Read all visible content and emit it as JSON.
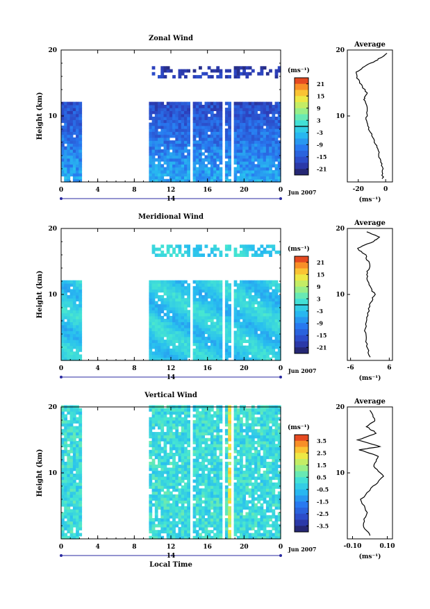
{
  "chart_data": [
    {
      "type": "heatmap",
      "title": "Zonal Wind",
      "ylabel": "Height (km)",
      "ylim": [
        0,
        20
      ],
      "xlim": [
        0,
        24
      ],
      "x_ticks": [
        "0",
        "4",
        "8",
        "12",
        "16",
        "20",
        "0"
      ],
      "y_ticks": [
        "20",
        "10"
      ],
      "day_label": "14",
      "date_label": "Jun 2007",
      "colorbar": {
        "unit_label": "(ms⁻¹)",
        "labels": [
          "21",
          "15",
          "9",
          "3",
          "-3",
          "-9",
          "-15",
          "-21"
        ],
        "values": [
          21,
          15,
          9,
          3,
          -3,
          -9,
          -15,
          -21
        ],
        "range": [
          -24,
          24
        ]
      },
      "data_coverage": {
        "time_gaps": [
          [
            2.3,
            9.7
          ],
          [
            14.2,
            14.5
          ],
          [
            17.7,
            18
          ],
          [
            18.6,
            18.9
          ]
        ],
        "max_height_km": 12.0,
        "upper_layer_km": [
          15.5,
          17.5
        ]
      },
      "average_profile": {
        "title": "Average",
        "xlabel": "(ms⁻¹)",
        "x_ticks": [
          "-20",
          "0"
        ],
        "y_ticks": [
          "20",
          "10"
        ],
        "xlim": [
          -28,
          5
        ],
        "points": [
          [
            -2,
            0.5
          ],
          [
            -2.5,
            2
          ],
          [
            -4,
            3.5
          ],
          [
            -6,
            5
          ],
          [
            -9,
            6.5
          ],
          [
            -12,
            8
          ],
          [
            -14,
            9.5
          ],
          [
            -13,
            11
          ],
          [
            -16,
            12.5
          ],
          [
            -14,
            13.5
          ],
          [
            -19,
            15
          ],
          [
            -22,
            16.5
          ],
          [
            -16,
            17.5
          ],
          [
            -6,
            18.5
          ],
          [
            1,
            19.5
          ]
        ]
      }
    },
    {
      "type": "heatmap",
      "title": "Meridional Wind",
      "ylabel": "Height (km)",
      "ylim": [
        0,
        20
      ],
      "xlim": [
        0,
        24
      ],
      "x_ticks": [
        "0",
        "4",
        "8",
        "12",
        "16",
        "20",
        "0"
      ],
      "y_ticks": [
        "20",
        "10"
      ],
      "day_label": "14",
      "date_label": "Jun 2007",
      "colorbar": {
        "unit_label": "(ms⁻¹)",
        "labels": [
          "21",
          "15",
          "9",
          "3",
          "-3",
          "-9",
          "-15",
          "-21"
        ],
        "values": [
          21,
          15,
          9,
          3,
          -3,
          -9,
          -15,
          -21
        ],
        "range": [
          -24,
          24
        ]
      },
      "data_coverage": {
        "time_gaps": [
          [
            2.3,
            9.7
          ],
          [
            14.2,
            14.5
          ],
          [
            17.7,
            18
          ],
          [
            18.6,
            18.9
          ]
        ],
        "max_height_km": 12.0,
        "upper_layer_km": [
          15.5,
          17.5
        ]
      },
      "average_profile": {
        "title": "Average",
        "xlabel": "(ms⁻¹)",
        "x_ticks": [
          "-6",
          "6"
        ],
        "y_ticks": [
          "20",
          "10"
        ],
        "xlim": [
          -7,
          7
        ],
        "points": [
          [
            0,
            0.5
          ],
          [
            -1,
            2.5
          ],
          [
            -1.5,
            4.5
          ],
          [
            -1,
            6.5
          ],
          [
            0,
            8.5
          ],
          [
            1.5,
            10
          ],
          [
            -0.5,
            11.5
          ],
          [
            -1,
            13
          ],
          [
            0,
            14.5
          ],
          [
            -1.5,
            16
          ],
          [
            -4,
            17
          ],
          [
            1,
            18
          ],
          [
            3,
            18.7
          ],
          [
            -1,
            19.5
          ]
        ]
      }
    },
    {
      "type": "heatmap",
      "title": "Vertical Wind",
      "ylabel": "Height (km)",
      "ylim": [
        0,
        20
      ],
      "xlim": [
        0,
        24
      ],
      "x_ticks": [
        "0",
        "4",
        "8",
        "12",
        "16",
        "20",
        "0"
      ],
      "y_ticks": [
        "20",
        "10"
      ],
      "day_label": "14",
      "date_label": "Jun 2007",
      "xlabel": "Local Time",
      "colorbar": {
        "unit_label": "(ms⁻¹)",
        "labels": [
          "3.5",
          "2.5",
          "1.5",
          "0.5",
          "-0.5",
          "-1.5",
          "-2.5",
          "-3.5"
        ],
        "values": [
          3.5,
          2.5,
          1.5,
          0.5,
          -0.5,
          -1.5,
          -2.5,
          -3.5
        ],
        "range": [
          -4,
          4
        ]
      },
      "data_coverage": {
        "time_gaps": [
          [
            2.3,
            9.7
          ],
          [
            14.2,
            14.5
          ],
          [
            17.7,
            18
          ],
          [
            18.6,
            18.9
          ]
        ],
        "max_height_km": 20.0,
        "upper_layer_km": [
          15.5,
          17.5
        ]
      },
      "average_profile": {
        "title": "Average",
        "xlabel": "(ms⁻¹)",
        "x_ticks": [
          "-0.10",
          "0.10"
        ],
        "y_ticks": [
          "20",
          "10"
        ],
        "xlim": [
          -0.13,
          0.13
        ],
        "points": [
          [
            0,
            0.5
          ],
          [
            -0.04,
            2
          ],
          [
            -0.02,
            4
          ],
          [
            -0.05,
            6
          ],
          [
            0.02,
            8
          ],
          [
            0.08,
            9.5
          ],
          [
            0.02,
            11
          ],
          [
            0.05,
            12.5
          ],
          [
            -0.06,
            13.5
          ],
          [
            0.06,
            14
          ],
          [
            -0.07,
            15
          ],
          [
            0.04,
            16
          ],
          [
            -0.02,
            17
          ],
          [
            0.03,
            18
          ],
          [
            0,
            19.5
          ]
        ]
      }
    }
  ]
}
